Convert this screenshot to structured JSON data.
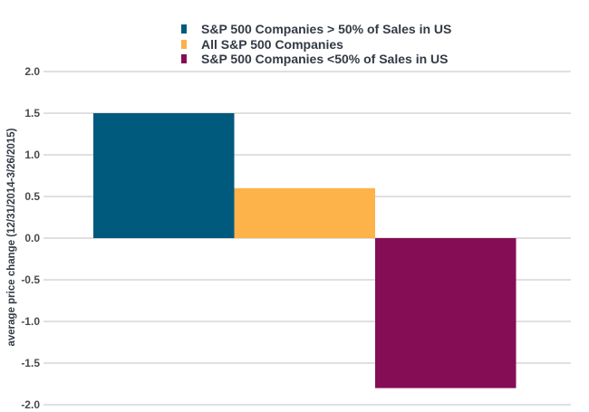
{
  "chart_data": {
    "type": "bar",
    "title": "",
    "xlabel": "",
    "ylabel": "average price change (12/31/2014-3/26/2015)",
    "ylim": [
      -2.0,
      2.0
    ],
    "yticks": [
      "2.0",
      "1.5",
      "1.0",
      "0.5",
      "0.0",
      "-0.5",
      "-1.0",
      "-1.5",
      "-2.0"
    ],
    "grid": true,
    "legend_position": "top-center",
    "series": [
      {
        "name": "S&P 500 Companies > 50% of Sales in US",
        "values": [
          1.5
        ],
        "color": "#005a7d"
      },
      {
        "name": "All S&P 500 Companies",
        "values": [
          0.6
        ],
        "color": "#fdb24a"
      },
      {
        "name": "S&P 500 Companies <50% of Sales in US",
        "values": [
          -1.8
        ],
        "color": "#840d55"
      }
    ]
  }
}
